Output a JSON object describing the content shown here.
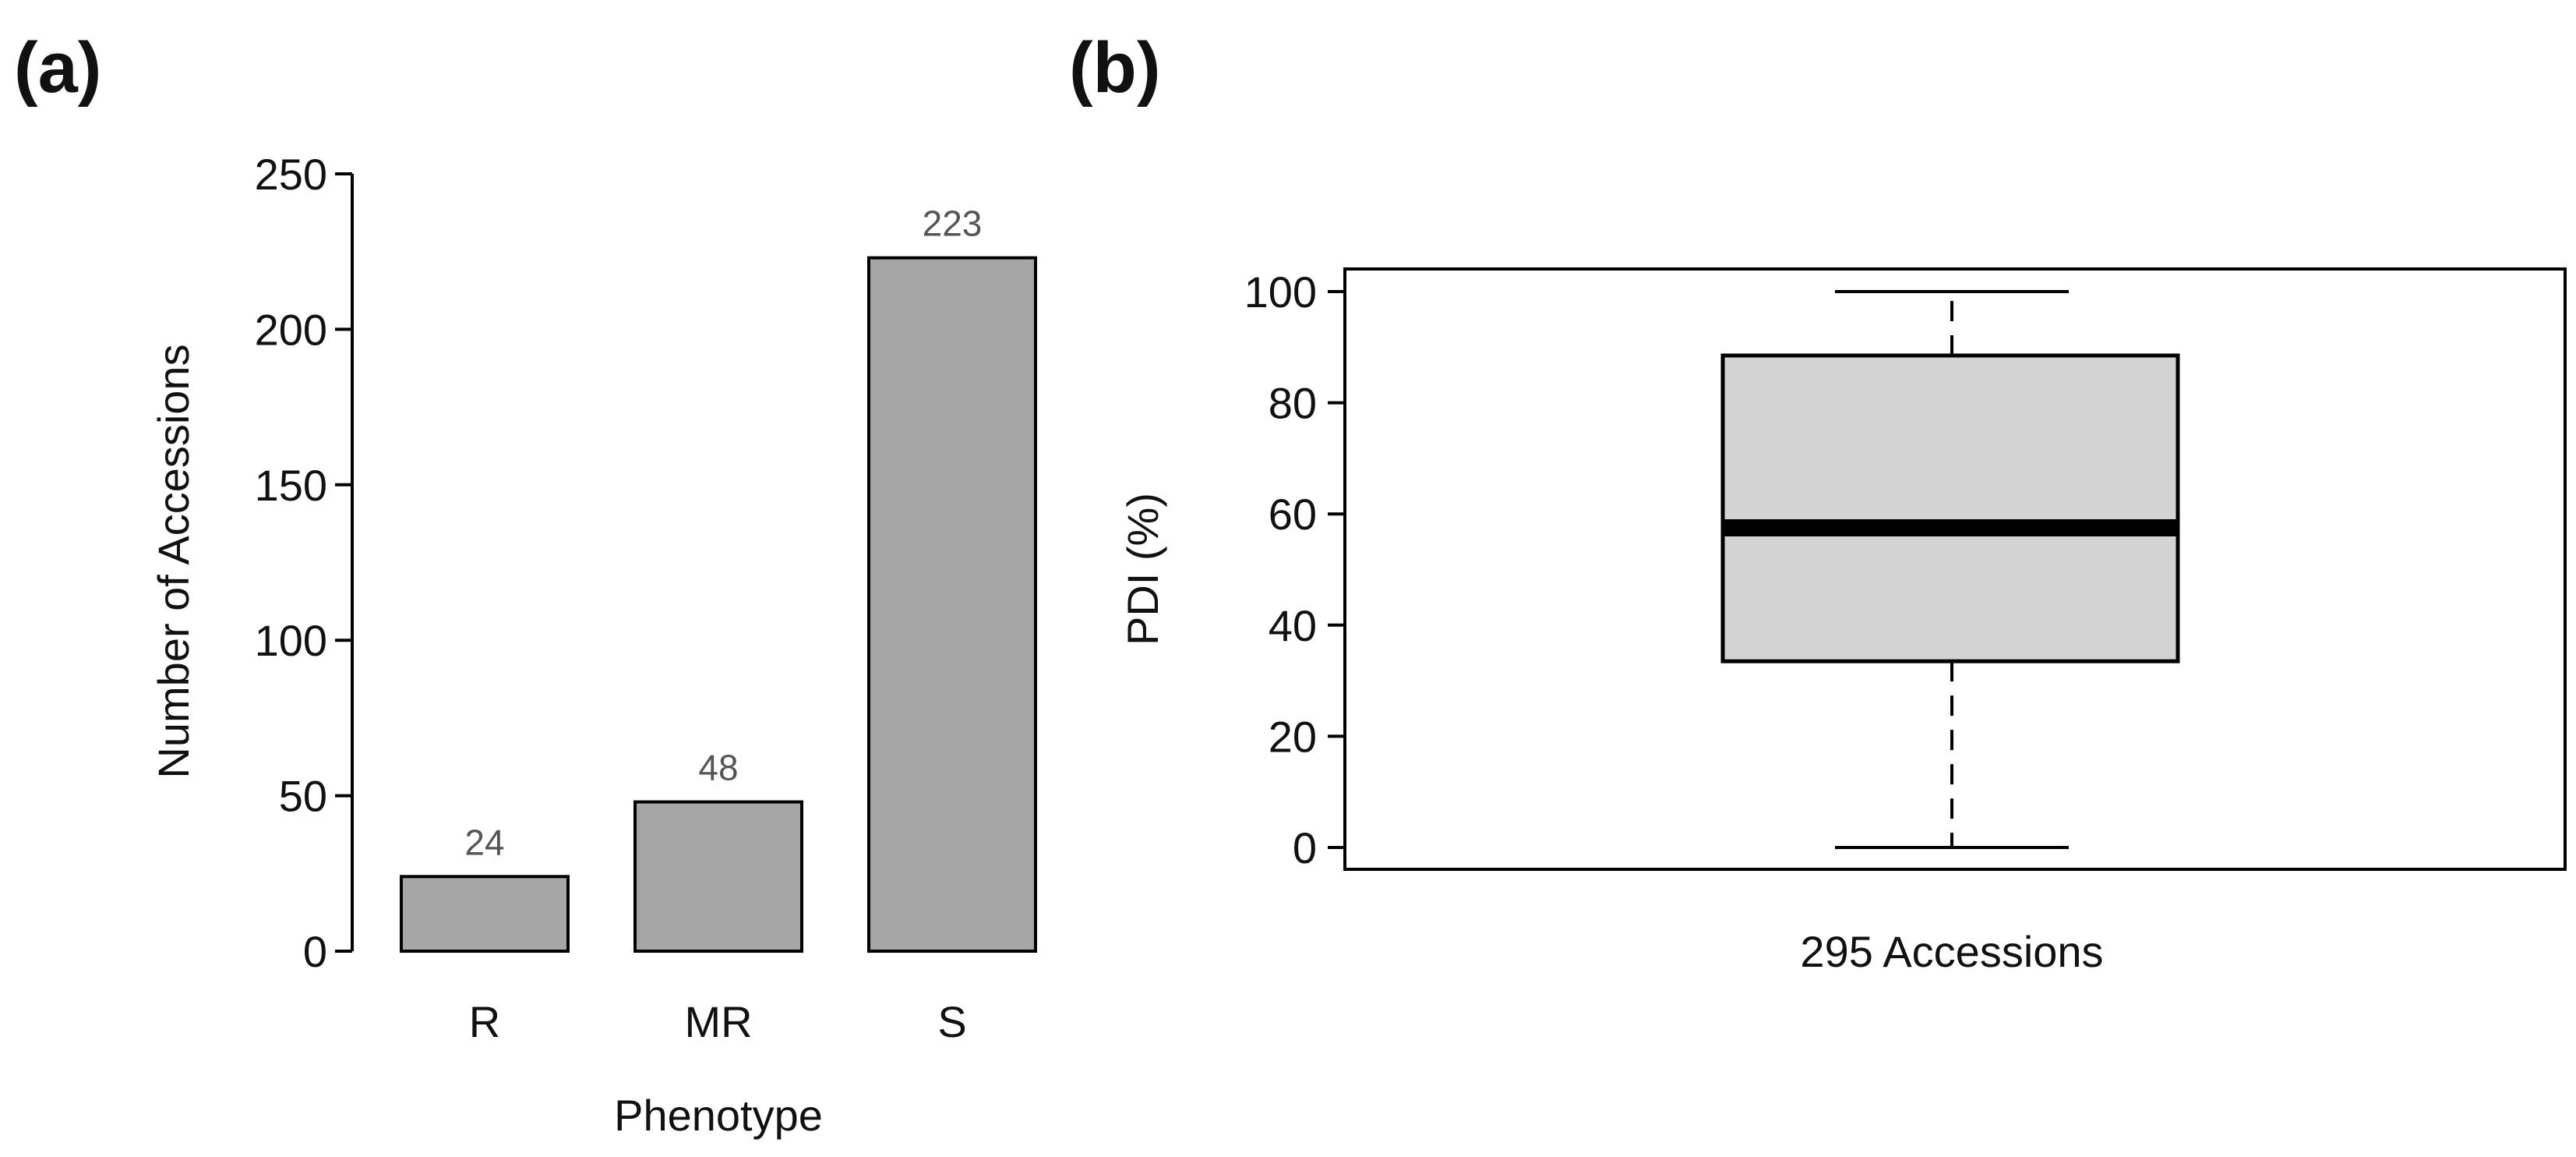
{
  "chart_data": [
    {
      "panel": "(a)",
      "type": "bar",
      "categories": [
        "R",
        "MR",
        "S"
      ],
      "values": [
        24,
        48,
        223
      ],
      "data_labels": [
        "24",
        "48",
        "223"
      ],
      "xlabel": "Phenotype",
      "ylabel": "Number of Accessions",
      "ylim": [
        0,
        250
      ],
      "yticks": [
        0,
        50,
        100,
        150,
        200,
        250
      ],
      "ytick_labels": [
        "0",
        "50",
        "100",
        "150",
        "200",
        "250"
      ],
      "grid": false,
      "colors": {
        "bar": "#a6a6a6",
        "stroke": "#000000",
        "data_label": "#555555"
      }
    },
    {
      "panel": "(b)",
      "type": "box",
      "categories": [
        "295 Accessions"
      ],
      "box": {
        "min": 0,
        "q1": 33.5,
        "median": 57.5,
        "q3": 88.5,
        "max": 100
      },
      "ylabel": "PDI (%)",
      "ylim": [
        0,
        100
      ],
      "yticks": [
        0,
        20,
        40,
        60,
        80,
        100
      ],
      "ytick_labels": [
        "0",
        "20",
        "40",
        "60",
        "80",
        "100"
      ],
      "grid": false,
      "colors": {
        "box": "#d3d3d3",
        "stroke": "#000000"
      }
    }
  ]
}
